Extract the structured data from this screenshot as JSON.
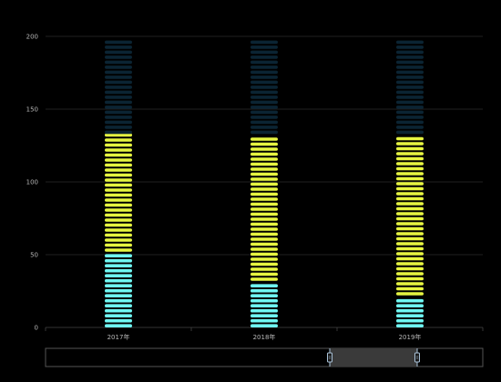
{
  "chart_data": {
    "type": "bar",
    "style": "pictorial-stacked-segments",
    "categories": [
      "2017年",
      "2018年",
      "2019年"
    ],
    "series": [
      {
        "values": [
          52,
          32,
          22
        ],
        "color": "#6ff6f2"
      },
      {
        "values": [
          81,
          101,
          111
        ],
        "color": "#e6f541"
      },
      {
        "values": [
          67,
          67,
          67
        ],
        "color": "#0b2433"
      }
    ],
    "ylim": [
      0,
      200
    ],
    "yticks": [
      0,
      50,
      100,
      150,
      200
    ],
    "grid": true,
    "legend": "none",
    "datazoom": {
      "start": 0.65,
      "end": 0.85
    }
  },
  "colors": {
    "background": "#000000",
    "grid": "#2a2a2a",
    "axis": "#444444",
    "tick_text": "#b8b8b8",
    "zoom_border": "#555555",
    "zoom_fill": "#3a3a3a",
    "zoom_handle": "#a9c2d8"
  }
}
